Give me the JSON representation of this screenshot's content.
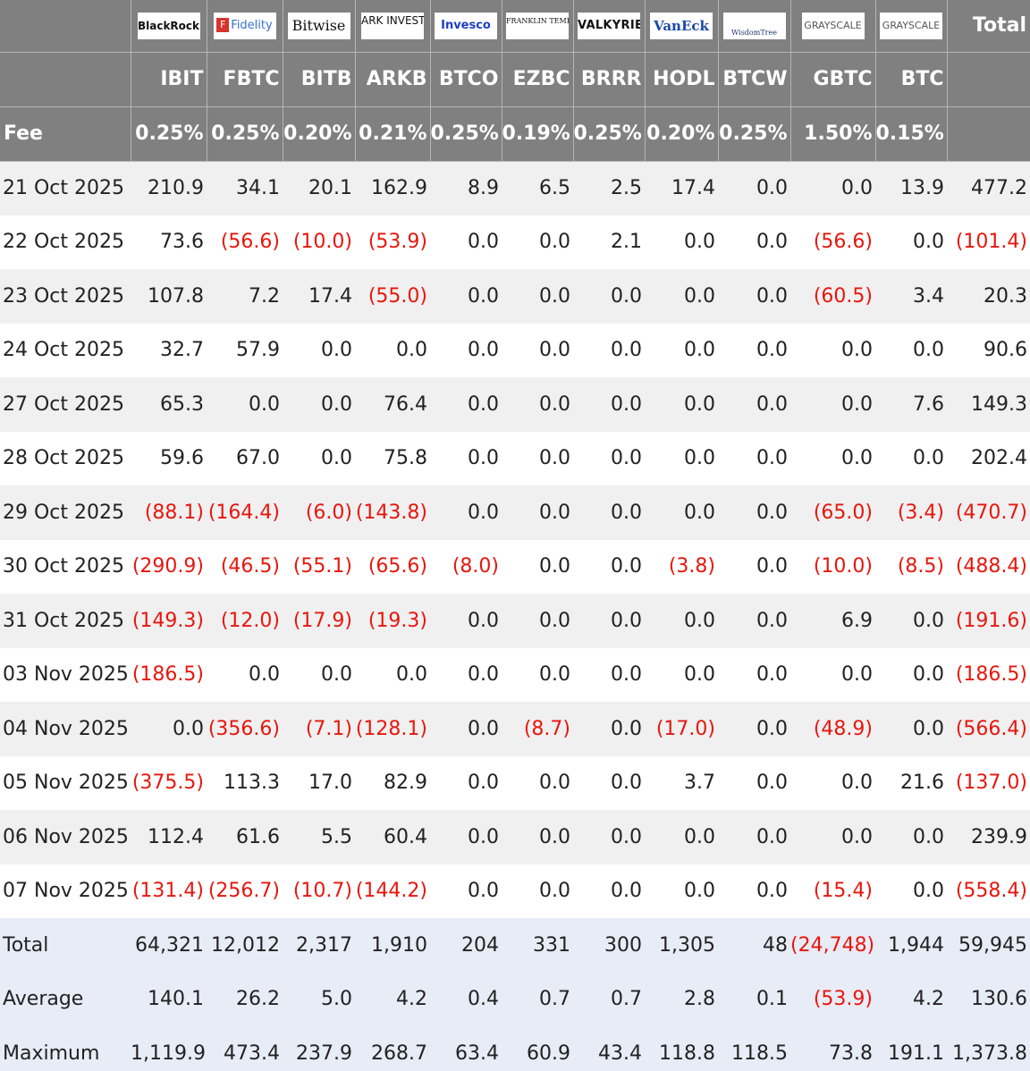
{
  "header": {
    "logos": [
      "BlackRock",
      "Fidelity",
      "Bitwise",
      "ARK INVEST",
      "Invesco",
      "FRANKLIN TEMPLETON",
      "VALKYRIE",
      "VanEck",
      "WisdomTree",
      "GRAYSCALE",
      "GRAYSCALE"
    ],
    "total_label": "Total",
    "tickers": [
      "IBIT",
      "FBTC",
      "BITB",
      "ARKB",
      "BTCO",
      "EZBC",
      "BRRR",
      "HODL",
      "BTCW",
      "GBTC",
      "BTC"
    ],
    "fee_label": "Fee",
    "fees": [
      "0.25%",
      "0.25%",
      "0.20%",
      "0.21%",
      "0.25%",
      "0.19%",
      "0.25%",
      "0.20%",
      "0.25%",
      "1.50%",
      "0.15%"
    ]
  },
  "rows": [
    {
      "date": "21 Oct 2025",
      "values": [
        "210.9",
        "34.1",
        "20.1",
        "162.9",
        "8.9",
        "6.5",
        "2.5",
        "17.4",
        "0.0",
        "0.0",
        "13.9",
        "477.2"
      ]
    },
    {
      "date": "22 Oct 2025",
      "values": [
        "73.6",
        "(56.6)",
        "(10.0)",
        "(53.9)",
        "0.0",
        "0.0",
        "2.1",
        "0.0",
        "0.0",
        "(56.6)",
        "0.0",
        "(101.4)"
      ]
    },
    {
      "date": "23 Oct 2025",
      "values": [
        "107.8",
        "7.2",
        "17.4",
        "(55.0)",
        "0.0",
        "0.0",
        "0.0",
        "0.0",
        "0.0",
        "(60.5)",
        "3.4",
        "20.3"
      ]
    },
    {
      "date": "24 Oct 2025",
      "values": [
        "32.7",
        "57.9",
        "0.0",
        "0.0",
        "0.0",
        "0.0",
        "0.0",
        "0.0",
        "0.0",
        "0.0",
        "0.0",
        "90.6"
      ]
    },
    {
      "date": "27 Oct 2025",
      "values": [
        "65.3",
        "0.0",
        "0.0",
        "76.4",
        "0.0",
        "0.0",
        "0.0",
        "0.0",
        "0.0",
        "0.0",
        "7.6",
        "149.3"
      ]
    },
    {
      "date": "28 Oct 2025",
      "values": [
        "59.6",
        "67.0",
        "0.0",
        "75.8",
        "0.0",
        "0.0",
        "0.0",
        "0.0",
        "0.0",
        "0.0",
        "0.0",
        "202.4"
      ]
    },
    {
      "date": "29 Oct 2025",
      "values": [
        "(88.1)",
        "(164.4)",
        "(6.0)",
        "(143.8)",
        "0.0",
        "0.0",
        "0.0",
        "0.0",
        "0.0",
        "(65.0)",
        "(3.4)",
        "(470.7)"
      ]
    },
    {
      "date": "30 Oct 2025",
      "values": [
        "(290.9)",
        "(46.5)",
        "(55.1)",
        "(65.6)",
        "(8.0)",
        "0.0",
        "0.0",
        "(3.8)",
        "0.0",
        "(10.0)",
        "(8.5)",
        "(488.4)"
      ]
    },
    {
      "date": "31 Oct 2025",
      "values": [
        "(149.3)",
        "(12.0)",
        "(17.9)",
        "(19.3)",
        "0.0",
        "0.0",
        "0.0",
        "0.0",
        "0.0",
        "6.9",
        "0.0",
        "(191.6)"
      ]
    },
    {
      "date": "03 Nov 2025",
      "values": [
        "(186.5)",
        "0.0",
        "0.0",
        "0.0",
        "0.0",
        "0.0",
        "0.0",
        "0.0",
        "0.0",
        "0.0",
        "0.0",
        "(186.5)"
      ]
    },
    {
      "date": "04 Nov 2025",
      "values": [
        "0.0",
        "(356.6)",
        "(7.1)",
        "(128.1)",
        "0.0",
        "(8.7)",
        "0.0",
        "(17.0)",
        "0.0",
        "(48.9)",
        "0.0",
        "(566.4)"
      ]
    },
    {
      "date": "05 Nov 2025",
      "values": [
        "(375.5)",
        "113.3",
        "17.0",
        "82.9",
        "0.0",
        "0.0",
        "0.0",
        "3.7",
        "0.0",
        "0.0",
        "21.6",
        "(137.0)"
      ]
    },
    {
      "date": "06 Nov 2025",
      "values": [
        "112.4",
        "61.6",
        "5.5",
        "60.4",
        "0.0",
        "0.0",
        "0.0",
        "0.0",
        "0.0",
        "0.0",
        "0.0",
        "239.9"
      ]
    },
    {
      "date": "07 Nov 2025",
      "values": [
        "(131.4)",
        "(256.7)",
        "(10.7)",
        "(144.2)",
        "0.0",
        "0.0",
        "0.0",
        "0.0",
        "0.0",
        "(15.4)",
        "0.0",
        "(558.4)"
      ]
    }
  ],
  "summary": [
    {
      "label": "Total",
      "values": [
        "64,321",
        "12,012",
        "2,317",
        "1,910",
        "204",
        "331",
        "300",
        "1,305",
        "48",
        "(24,748)",
        "1,944",
        "59,945"
      ]
    },
    {
      "label": "Average",
      "values": [
        "140.1",
        "26.2",
        "5.0",
        "4.2",
        "0.4",
        "0.7",
        "0.7",
        "2.8",
        "0.1",
        "(53.9)",
        "4.2",
        "130.6"
      ]
    },
    {
      "label": "Maximum",
      "values": [
        "1,119.9",
        "473.4",
        "237.9",
        "268.7",
        "63.4",
        "60.9",
        "43.4",
        "118.8",
        "118.5",
        "73.8",
        "191.1",
        "1,373.8"
      ]
    }
  ],
  "colors": {
    "header_bg": "#808080",
    "negative": "#e8160d",
    "row_alt": "#f0f0f0",
    "summary_bg": "#e8ecf7"
  }
}
